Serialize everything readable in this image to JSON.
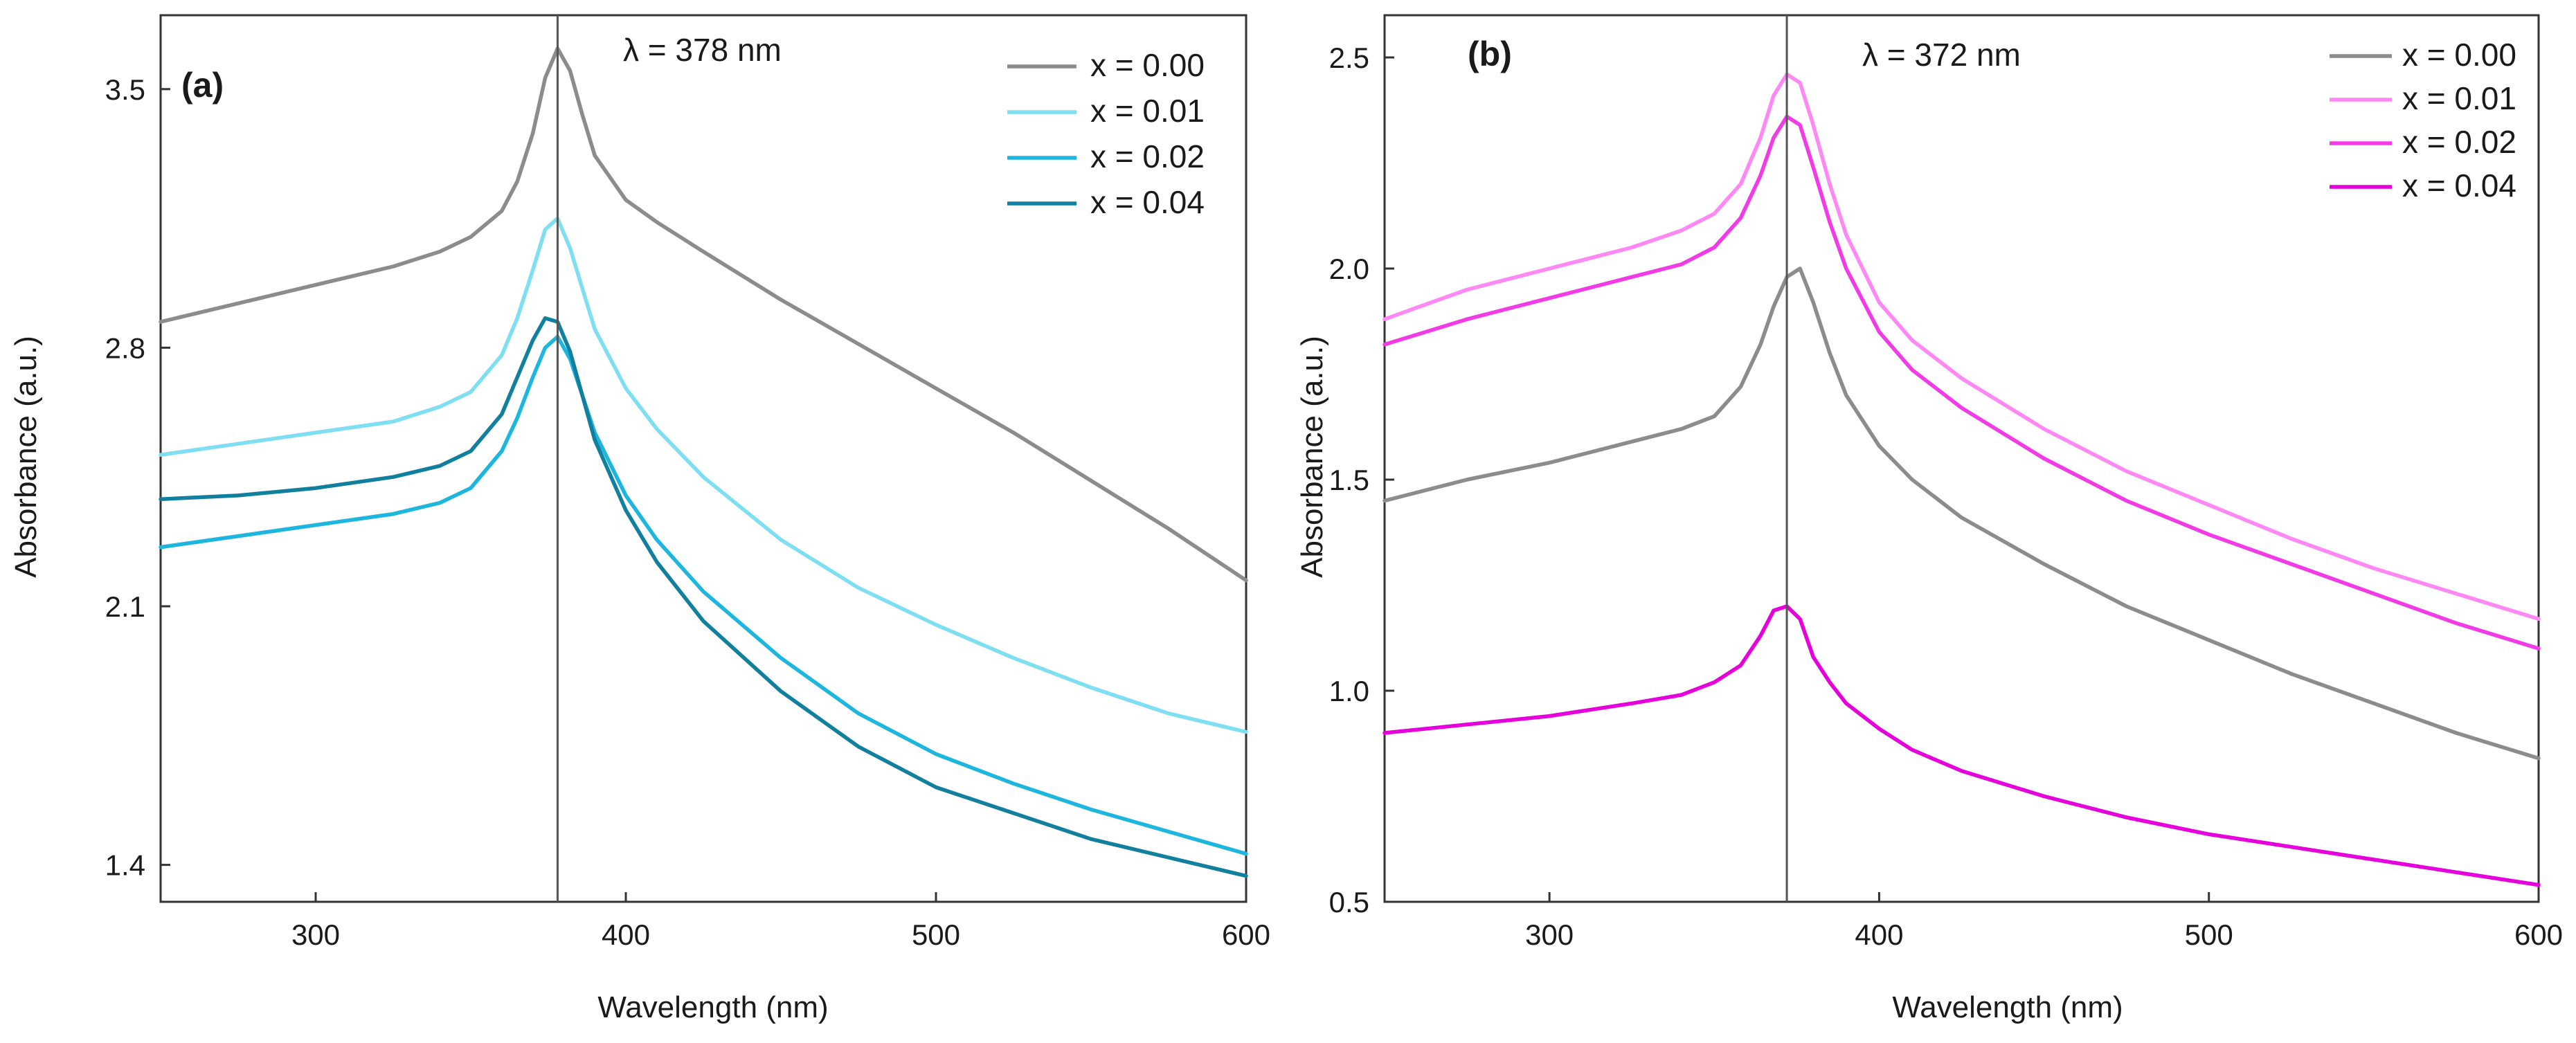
{
  "chart_data": [
    {
      "type": "line",
      "panel_label": "(a)",
      "xlabel": "Wavelength (nm)",
      "ylabel": "Absorbance (a.u.)",
      "xlim": [
        250,
        600
      ],
      "ylim": [
        1.3,
        3.7
      ],
      "xticks": [
        300,
        400,
        500,
        600
      ],
      "yticks": [
        1.4,
        2.1,
        2.8,
        3.5
      ],
      "ytick_labels": [
        "1.4",
        "2.1",
        "2.8",
        "3.5"
      ],
      "marker_x": 378,
      "annotation": "λ = 378 nm",
      "legend_position": "top-right",
      "x": [
        250,
        275,
        300,
        325,
        340,
        350,
        360,
        365,
        370,
        374,
        378,
        382,
        386,
        390,
        400,
        410,
        425,
        450,
        475,
        500,
        525,
        550,
        575,
        600
      ],
      "series": [
        {
          "name": "x = 0.00",
          "color": "#8c8c8c",
          "values": [
            2.87,
            2.92,
            2.97,
            3.02,
            3.06,
            3.1,
            3.17,
            3.25,
            3.38,
            3.53,
            3.61,
            3.55,
            3.43,
            3.32,
            3.2,
            3.14,
            3.06,
            2.93,
            2.81,
            2.69,
            2.57,
            2.44,
            2.31,
            2.17
          ]
        },
        {
          "name": "x = 0.01",
          "color": "#7fdff2",
          "values": [
            2.51,
            2.54,
            2.57,
            2.6,
            2.64,
            2.68,
            2.78,
            2.88,
            3.01,
            3.12,
            3.15,
            3.07,
            2.96,
            2.85,
            2.69,
            2.58,
            2.45,
            2.28,
            2.15,
            2.05,
            1.96,
            1.88,
            1.81,
            1.76
          ]
        },
        {
          "name": "x = 0.02",
          "color": "#1cb6df",
          "values": [
            2.26,
            2.29,
            2.32,
            2.35,
            2.38,
            2.42,
            2.52,
            2.61,
            2.72,
            2.8,
            2.83,
            2.77,
            2.67,
            2.57,
            2.4,
            2.28,
            2.14,
            1.96,
            1.81,
            1.7,
            1.62,
            1.55,
            1.49,
            1.43
          ]
        },
        {
          "name": "x = 0.04",
          "color": "#117f9e",
          "values": [
            2.39,
            2.4,
            2.42,
            2.45,
            2.48,
            2.52,
            2.62,
            2.72,
            2.82,
            2.88,
            2.87,
            2.79,
            2.67,
            2.55,
            2.36,
            2.22,
            2.06,
            1.87,
            1.72,
            1.61,
            1.54,
            1.47,
            1.42,
            1.37
          ]
        }
      ]
    },
    {
      "type": "line",
      "panel_label": "(b)",
      "xlabel": "Wavelength (nm)",
      "ylabel": "Absorbance (a.u.)",
      "xlim": [
        250,
        600
      ],
      "ylim": [
        0.5,
        2.6
      ],
      "xticks": [
        300,
        400,
        500,
        600
      ],
      "yticks": [
        0.5,
        1.0,
        1.5,
        2.0,
        2.5
      ],
      "ytick_labels": [
        "0.5",
        "1.0",
        "1.5",
        "2.0",
        "2.5"
      ],
      "marker_x": 372,
      "annotation": "λ = 372 nm",
      "legend_position": "top-right",
      "x": [
        250,
        275,
        300,
        325,
        340,
        350,
        358,
        364,
        368,
        372,
        376,
        380,
        385,
        390,
        400,
        410,
        425,
        450,
        475,
        500,
        525,
        550,
        575,
        600
      ],
      "series": [
        {
          "name": "x = 0.00",
          "color": "#8c8c8c",
          "values": [
            1.45,
            1.5,
            1.54,
            1.59,
            1.62,
            1.65,
            1.72,
            1.82,
            1.91,
            1.98,
            2.0,
            1.92,
            1.8,
            1.7,
            1.58,
            1.5,
            1.41,
            1.3,
            1.2,
            1.12,
            1.04,
            0.97,
            0.9,
            0.84
          ]
        },
        {
          "name": "x = 0.01",
          "color": "#ff88f5",
          "values": [
            1.88,
            1.95,
            2.0,
            2.05,
            2.09,
            2.13,
            2.2,
            2.31,
            2.41,
            2.46,
            2.44,
            2.34,
            2.2,
            2.08,
            1.92,
            1.83,
            1.74,
            1.62,
            1.52,
            1.44,
            1.36,
            1.29,
            1.23,
            1.17
          ]
        },
        {
          "name": "x = 0.02",
          "color": "#f23ae6",
          "values": [
            1.82,
            1.88,
            1.93,
            1.98,
            2.01,
            2.05,
            2.12,
            2.22,
            2.31,
            2.36,
            2.34,
            2.24,
            2.11,
            2.0,
            1.85,
            1.76,
            1.67,
            1.55,
            1.45,
            1.37,
            1.3,
            1.23,
            1.16,
            1.1
          ]
        },
        {
          "name": "x = 0.04",
          "color": "#e600dc",
          "values": [
            0.9,
            0.92,
            0.94,
            0.97,
            0.99,
            1.02,
            1.06,
            1.13,
            1.19,
            1.2,
            1.17,
            1.08,
            1.02,
            0.97,
            0.91,
            0.86,
            0.81,
            0.75,
            0.7,
            0.66,
            0.63,
            0.6,
            0.57,
            0.54
          ]
        }
      ]
    }
  ]
}
